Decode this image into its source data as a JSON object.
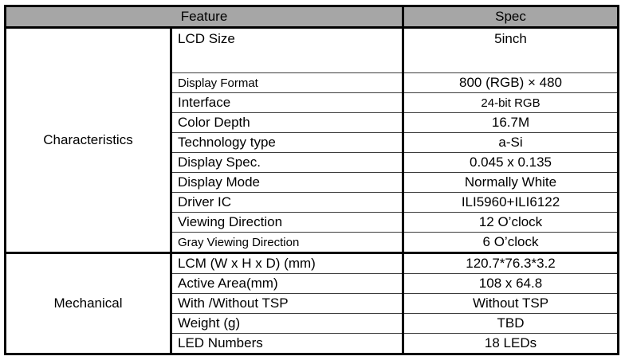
{
  "header": {
    "feature_label": "Feature",
    "spec_label": "Spec"
  },
  "sections": [
    {
      "group": "Characteristics",
      "rows": [
        {
          "feature": "LCD Size",
          "spec": "5inch",
          "tall": true
        },
        {
          "feature": "Display Format",
          "spec": "800 (RGB) × 480",
          "feature_small": true
        },
        {
          "feature": "Interface",
          "spec": "24-bit RGB",
          "spec_small": true
        },
        {
          "feature": "Color Depth",
          "spec": "16.7M"
        },
        {
          "feature": "Technology type",
          "spec": "a-Si"
        },
        {
          "feature": "Display Spec.",
          "spec": "0.045 x 0.135"
        },
        {
          "feature": "Display Mode",
          "spec": "Normally White"
        },
        {
          "feature": "Driver IC",
          "spec": "ILI5960+ILI6122"
        },
        {
          "feature": "Viewing Direction",
          "spec": "12 O’clock"
        },
        {
          "feature": "Gray Viewing Direction",
          "spec": "6 O’clock",
          "feature_small": true
        }
      ]
    },
    {
      "group": "Mechanical",
      "rows": [
        {
          "feature": "LCM (W x H x D) (mm)",
          "spec": "120.7*76.3*3.2"
        },
        {
          "feature": "Active Area(mm)",
          "spec": "108 x 64.8"
        },
        {
          "feature": "With /Without TSP",
          "spec": "Without TSP"
        },
        {
          "feature": "Weight (g)",
          "spec": "TBD"
        },
        {
          "feature": "LED Numbers",
          "spec": "18 LEDs"
        }
      ]
    }
  ],
  "colors": {
    "header_bg": "#a6a6a6",
    "outer_border": "#000000",
    "row_line": "#3c3c3c"
  }
}
